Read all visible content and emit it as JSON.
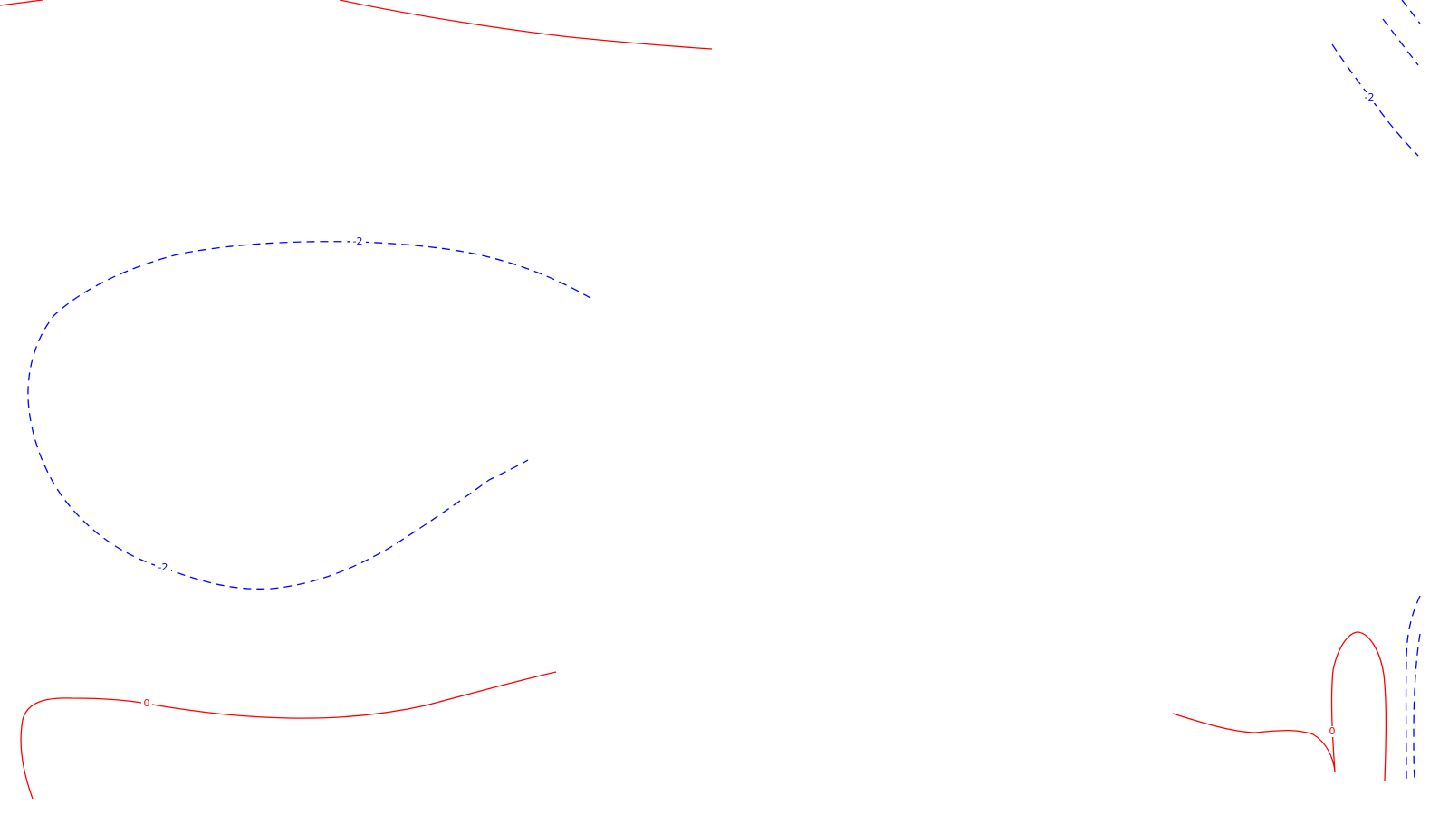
{
  "colors": {
    "background": "#ffffff",
    "positive_contour": "#ff0000",
    "negative_contour": "#0000ff"
  },
  "contour_labels": {
    "zero_bottom_left": "0",
    "zero_bottom_right": "0",
    "neg_left_top": "-2",
    "neg_left_bottom": "-2",
    "neg_top_right": "-2"
  }
}
